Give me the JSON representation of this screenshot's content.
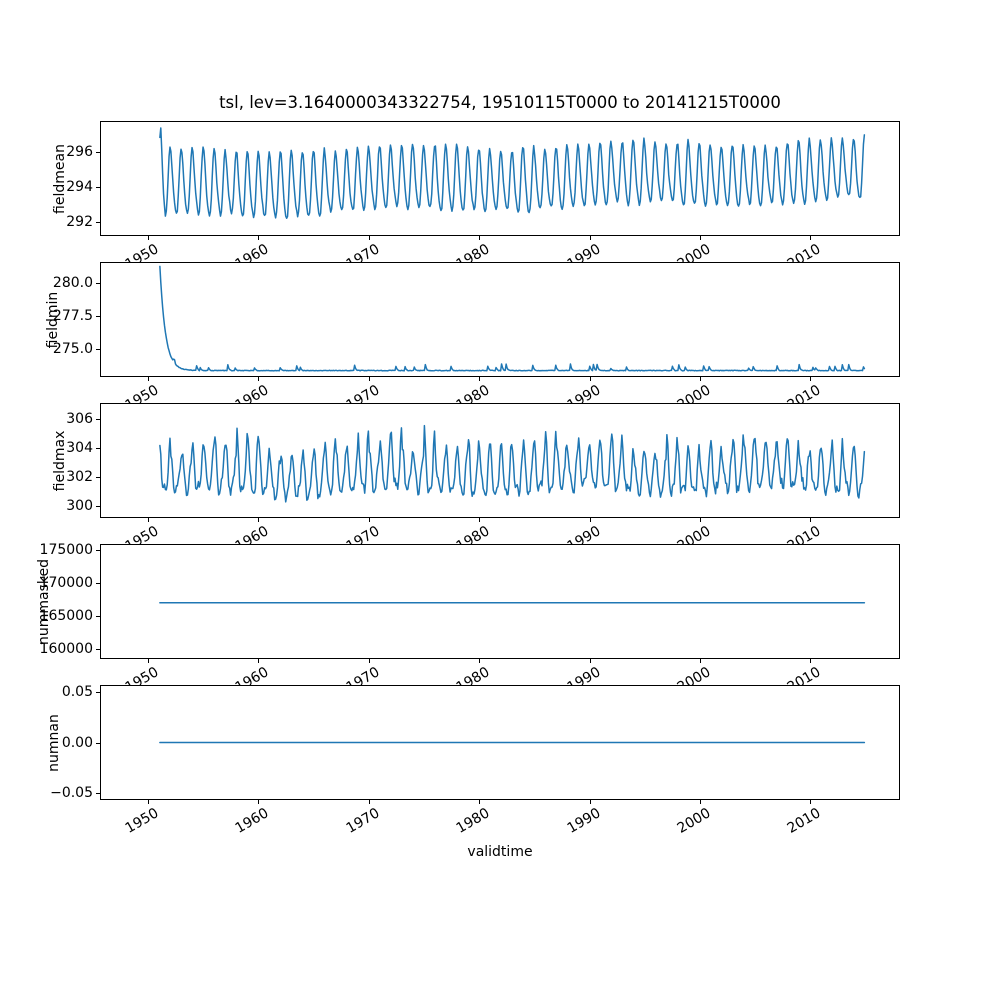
{
  "figure": {
    "title": "tsl, lev=3.1640000343322754, 19510115T0000 to 20141215T0000",
    "line_color": "#1f77b4",
    "background_color": "#ffffff",
    "x_axis": {
      "label": "validtime",
      "xlim": [
        1945.7,
        2018.1
      ],
      "start": 1951.0417,
      "step": 0.0833333,
      "n": 768,
      "ticks": [
        {
          "v": 1950,
          "label": "1950"
        },
        {
          "v": 1960,
          "label": "1960"
        },
        {
          "v": 1970,
          "label": "1970"
        },
        {
          "v": 1980,
          "label": "1980"
        },
        {
          "v": 1990,
          "label": "1990"
        },
        {
          "v": 2000,
          "label": "2000"
        },
        {
          "v": 2010,
          "label": "2010"
        }
      ]
    }
  },
  "chart_data": [
    {
      "type": "line",
      "ylabel": "fieldmean",
      "ylim": [
        291.2,
        297.8
      ],
      "yticks": [
        {
          "v": 296,
          "label": "296"
        },
        {
          "v": 294,
          "label": "294"
        },
        {
          "v": 292,
          "label": "292"
        }
      ],
      "description": "Monthly mean; initial spike to ~297.4 in early 1951, then annual cycle ~292-296 with slow upward trend to ~293.3-296.7 by 2014",
      "gen": {
        "kind": "seasonal-smooth",
        "seed": 11,
        "base0": 294.0,
        "trend": 0.8,
        "amp0": 1.85,
        "amp_trend": -0.15,
        "amp2": 0.3,
        "noise": 0.09,
        "override": [
          296.9,
          297.45,
          296.2,
          294.8,
          293.6,
          292.9,
          292.3
        ]
      }
    },
    {
      "type": "line",
      "ylabel": "fieldmin",
      "ylim": [
        272.88,
        281.59
      ],
      "yticks": [
        {
          "v": 280.0,
          "label": "280.0"
        },
        {
          "v": 277.5,
          "label": "277.5"
        },
        {
          "v": 275.0,
          "label": "275.0"
        }
      ],
      "description": "Starts ~281.3 in 1951, decays rapidly to ~273.3 by 1953, then flat with occasional small upward blips (+0.2 to +0.5)",
      "gen": {
        "kind": "decay-flat",
        "seed": 23,
        "floor": 273.3,
        "start": 281.35,
        "tau": 0.5,
        "bump_prob": 0.05,
        "bump_max": 0.5,
        "noise": 0.022
      }
    },
    {
      "type": "line",
      "ylabel": "fieldmax",
      "ylim": [
        299.15,
        307.08
      ],
      "yticks": [
        {
          "v": 306,
          "label": "306"
        },
        {
          "v": 304,
          "label": "304"
        },
        {
          "v": 302,
          "label": "302"
        },
        {
          "v": 300,
          "label": "300"
        }
      ],
      "description": "Noisy spiky annual cycle between ~300 and ~306, sharp peaks 304-306, troughs 300-301.5, slightly higher peaks after 2000",
      "gen": {
        "kind": "seasonal-spiky",
        "seed": 37,
        "base": 300.9,
        "trend": 0.3,
        "amp_min": 2.5,
        "amp_max": 4.1,
        "sharp": 1.8,
        "amp2": 0.35,
        "noise": 0.3
      }
    },
    {
      "type": "line",
      "ylabel": "nummasked",
      "ylim": [
        158485,
        175909
      ],
      "yticks": [
        {
          "v": 175000,
          "label": "175000"
        },
        {
          "v": 170000,
          "label": "170000"
        },
        {
          "v": 165000,
          "label": "165000"
        },
        {
          "v": 160000,
          "label": "160000"
        }
      ],
      "description": "Constant at ~167000 for the whole period",
      "gen": {
        "kind": "constant",
        "value": 167000
      }
    },
    {
      "type": "line",
      "ylabel": "numnan",
      "ylim": [
        -0.0565,
        0.0565
      ],
      "yticks": [
        {
          "v": 0.05,
          "label": "0.05"
        },
        {
          "v": 0.0,
          "label": "0.00"
        },
        {
          "v": -0.05,
          "label": "−0.05"
        }
      ],
      "description": "Constant at 0.00 for the whole period",
      "gen": {
        "kind": "constant",
        "value": 0
      }
    }
  ]
}
